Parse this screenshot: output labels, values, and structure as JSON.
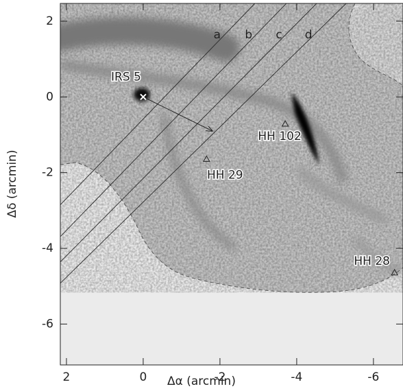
{
  "chart_data": {
    "type": "image",
    "xlabel": "Δα (arcmin)",
    "ylabel": "Δδ (arcmin)",
    "xlim": [
      2.16,
      -6.77
    ],
    "ylim": [
      -7.08,
      2.47
    ],
    "xticks": [
      2,
      0,
      -2,
      -4,
      -6
    ],
    "yticks": [
      2,
      0,
      -2,
      -4,
      -6
    ],
    "sources": [
      {
        "label": "IRS 5",
        "x": 0,
        "y": 0,
        "marker": "x"
      },
      {
        "label": "HH 102",
        "x": -3.7,
        "y": -0.72,
        "marker": "triangle"
      },
      {
        "label": "HH 29",
        "x": -1.65,
        "y": -1.65,
        "marker": "triangle"
      },
      {
        "label": "HH 28",
        "x": -6.55,
        "y": -4.65,
        "marker": "triangle"
      }
    ],
    "slits": [
      {
        "name": "a",
        "x": [
          2.16,
          -2.91
        ],
        "y": [
          -2.85,
          2.47
        ]
      },
      {
        "name": "b",
        "x": [
          2.16,
          -3.73
        ],
        "y": [
          -3.69,
          2.47
        ]
      },
      {
        "name": "c",
        "x": [
          2.16,
          -4.52
        ],
        "y": [
          -4.36,
          2.47
        ]
      },
      {
        "name": "d",
        "x": [
          2.16,
          -5.29
        ],
        "y": [
          -4.92,
          2.47
        ]
      }
    ],
    "arrow": {
      "x": [
        0,
        -1.8
      ],
      "y": [
        0,
        -0.9
      ]
    }
  }
}
